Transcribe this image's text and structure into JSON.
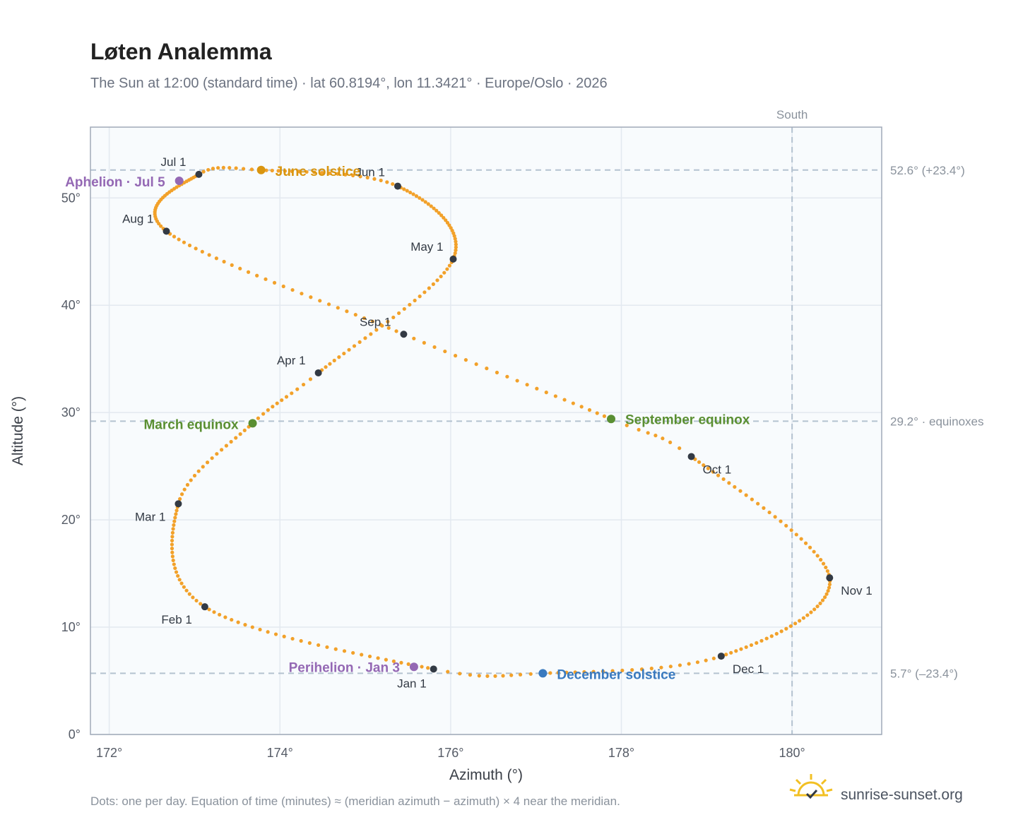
{
  "header": {
    "title": "Løten Analemma",
    "subtitle": "The Sun at 12:00 (standard time) · lat 60.8194°, lon 11.3421° · Europe/Oslo · 2026"
  },
  "footer": {
    "note": "Dots: one per day. Equation of time (minutes) ≈ (meridian azimuth − azimuth) × 4 near the meridian.",
    "brand": "sunrise-sunset.org"
  },
  "colors": {
    "path": "#f2a12a",
    "month_marker": "#333a44",
    "solstice_june": "#d9950f",
    "solstice_december": "#3a7abf",
    "equinox": "#5a8f32",
    "apsis": "#9468b4",
    "reference_line": "#b4c2d0",
    "plot_bg": "#f8fbfd",
    "frame": "#a0aab8"
  },
  "chart_data": {
    "type": "scatter",
    "title": "Løten Analemma",
    "xlabel": "Azimuth (°)",
    "ylabel": "Altitude (°)",
    "xlim": [
      171.78,
      181.05
    ],
    "ylim": [
      0,
      56.6
    ],
    "x_ticks": [
      {
        "value": 172,
        "label": "172°"
      },
      {
        "value": 174,
        "label": "174°"
      },
      {
        "value": 176,
        "label": "176°"
      },
      {
        "value": 178,
        "label": "178°"
      },
      {
        "value": 180,
        "label": "180°"
      }
    ],
    "y_ticks": [
      {
        "value": 0,
        "label": "0°"
      },
      {
        "value": 10,
        "label": "10°"
      },
      {
        "value": 20,
        "label": "20°"
      },
      {
        "value": 30,
        "label": "30°"
      },
      {
        "value": 40,
        "label": "40°"
      },
      {
        "value": 50,
        "label": "50°"
      }
    ],
    "grid": true,
    "vertical_reference": {
      "x": 180,
      "label": "South"
    },
    "horizontal_references": [
      {
        "y": 52.6,
        "label": "52.6° (+23.4°)"
      },
      {
        "y": 29.2,
        "label": "29.2° · equinoxes"
      },
      {
        "y": 5.7,
        "label": "5.7° (–23.4°)"
      }
    ],
    "path_anchors": [
      {
        "day": 1,
        "az": 175.8,
        "alt": 6.1
      },
      {
        "day": 32,
        "az": 173.12,
        "alt": 11.9
      },
      {
        "day": 60,
        "az": 172.81,
        "alt": 21.5
      },
      {
        "day": 79,
        "az": 173.68,
        "alt": 29.0
      },
      {
        "day": 91,
        "az": 174.45,
        "alt": 33.7
      },
      {
        "day": 121,
        "az": 176.03,
        "alt": 44.3
      },
      {
        "day": 152,
        "az": 175.38,
        "alt": 51.1
      },
      {
        "day": 172,
        "az": 173.78,
        "alt": 52.6
      },
      {
        "day": 182,
        "az": 173.05,
        "alt": 52.2
      },
      {
        "day": 213,
        "az": 172.67,
        "alt": 46.9
      },
      {
        "day": 244,
        "az": 175.45,
        "alt": 37.3
      },
      {
        "day": 266,
        "az": 177.88,
        "alt": 29.4
      },
      {
        "day": 274,
        "az": 178.82,
        "alt": 25.9
      },
      {
        "day": 305,
        "az": 180.44,
        "alt": 14.6
      },
      {
        "day": 335,
        "az": 179.17,
        "alt": 7.3
      },
      {
        "day": 355,
        "az": 177.08,
        "alt": 5.7
      },
      {
        "day": 366,
        "az": 175.8,
        "alt": 6.1
      }
    ],
    "months": [
      {
        "label": "Jan 1",
        "az": 175.8,
        "alt": 6.1
      },
      {
        "label": "Feb 1",
        "az": 173.12,
        "alt": 11.9
      },
      {
        "label": "Mar 1",
        "az": 172.81,
        "alt": 21.5
      },
      {
        "label": "Apr 1",
        "az": 174.45,
        "alt": 33.7
      },
      {
        "label": "May 1",
        "az": 176.03,
        "alt": 44.3
      },
      {
        "label": "Jun 1",
        "az": 175.38,
        "alt": 51.1
      },
      {
        "label": "Jul 1",
        "az": 173.05,
        "alt": 52.2
      },
      {
        "label": "Aug 1",
        "az": 172.67,
        "alt": 46.9
      },
      {
        "label": "Sep 1",
        "az": 175.45,
        "alt": 37.3
      },
      {
        "label": "Oct 1",
        "az": 178.82,
        "alt": 25.9
      },
      {
        "label": "Nov 1",
        "az": 180.44,
        "alt": 14.6
      },
      {
        "label": "Dec 1",
        "az": 179.17,
        "alt": 7.3
      }
    ],
    "events": [
      {
        "label": "June solstice",
        "az": 173.78,
        "alt": 52.6,
        "kind": "solstice_june"
      },
      {
        "label": "December solstice",
        "az": 177.08,
        "alt": 5.7,
        "kind": "solstice_december"
      },
      {
        "label": "March equinox",
        "az": 173.68,
        "alt": 29.0,
        "kind": "equinox"
      },
      {
        "label": "September equinox",
        "az": 177.88,
        "alt": 29.4,
        "kind": "equinox"
      },
      {
        "label": "Aphelion · Jul 5",
        "az": 172.82,
        "alt": 51.6,
        "kind": "apsis"
      },
      {
        "label": "Perihelion · Jan 3",
        "az": 175.57,
        "alt": 6.3,
        "kind": "apsis"
      }
    ]
  }
}
